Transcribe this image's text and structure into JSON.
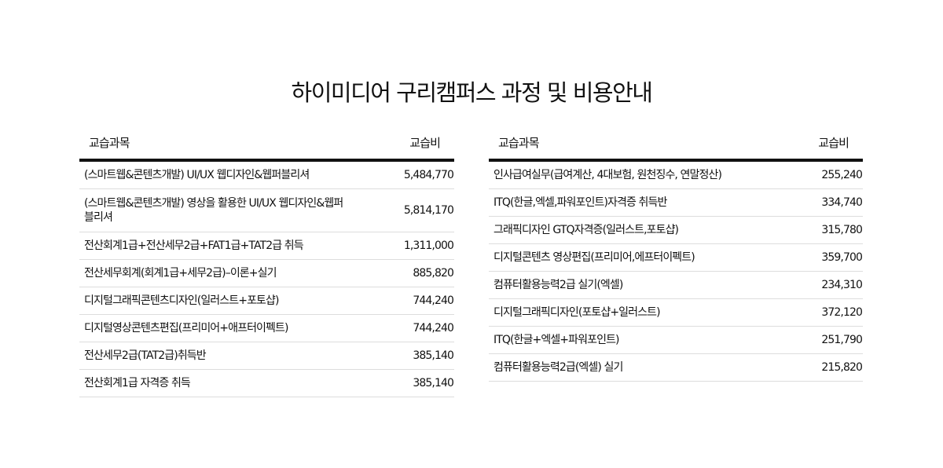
{
  "title": "하이미디어 구리캠퍼스 과정 및 비용안내",
  "left_table": {
    "headers": {
      "course": "교습과목",
      "fee": "교습비"
    },
    "rows": [
      {
        "course": "(스마트웹&콘텐츠개발) UI/UX 웹디자인&웹퍼블리셔",
        "fee": "5,484,770"
      },
      {
        "course": "(스마트웹&콘텐츠개발) 영상을 활용한 UI/UX 웹디자인&웹퍼블리셔",
        "fee": "5,814,170"
      },
      {
        "course": "전산회계1급+전산세무2급+FAT1급+TAT2급 취득",
        "fee": "1,311,000"
      },
      {
        "course": "전산세무회계(회계1급+세무2급)–이론+실기",
        "fee": "885,820"
      },
      {
        "course": "디지털그래픽콘텐츠디자인(일러스트+포토샵)",
        "fee": "744,240"
      },
      {
        "course": "디지털영상콘텐츠편집(프리미어+애프터이펙트)",
        "fee": "744,240"
      },
      {
        "course": "전산세무2급(TAT2급)취득반",
        "fee": "385,140"
      },
      {
        "course": "전산회계1급 자격증 취득",
        "fee": "385,140"
      }
    ]
  },
  "right_table": {
    "headers": {
      "course": "교습과목",
      "fee": "교습비"
    },
    "rows": [
      {
        "course": "인사급여실무(급여계산, 4대보험, 원천징수, 연말정산)",
        "fee": "255,240"
      },
      {
        "course": "ITQ(한글,엑셀,파워포인트)자격증 취득반",
        "fee": "334,740"
      },
      {
        "course": "그래픽디자인 GTQ자격증(일러스트,포토샵)",
        "fee": "315,780"
      },
      {
        "course": "디지털콘텐츠 영상편집(프리미어,에프터이펙트)",
        "fee": "359,700"
      },
      {
        "course": "컴퓨터활용능력2급 실기(엑셀)",
        "fee": "234,310"
      },
      {
        "course": "디지털그래픽디자인(포토샵+일러스트)",
        "fee": "372,120"
      },
      {
        "course": "ITQ(한글+엑셀+파워포인트)",
        "fee": "251,790"
      },
      {
        "course": "컴퓨터활용능력2급(엑셀) 실기",
        "fee": "215,820"
      }
    ]
  }
}
